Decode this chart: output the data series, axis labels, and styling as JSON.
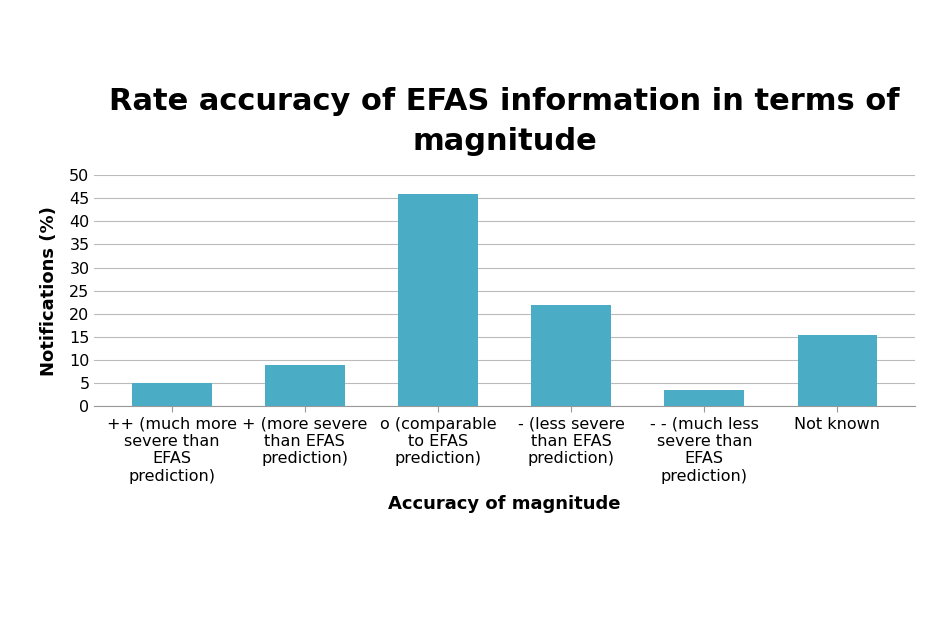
{
  "title": "Rate accuracy of EFAS information in terms of\nmagnitude",
  "xlabel": "Accuracy of magnitude",
  "ylabel": "Notifications (%)",
  "categories": [
    "++ (much more\nsevere than\nEFAS\nprediction)",
    "+ (more severe\nthan EFAS\nprediction)",
    "o (comparable\nto EFAS\nprediction)",
    "- (less severe\nthan EFAS\nprediction)",
    "- - (much less\nsevere than\nEFAS\nprediction)",
    "Not known"
  ],
  "values": [
    5,
    9,
    46,
    22,
    3.5,
    15.5
  ],
  "bar_color": "#4BACC6",
  "ylim": [
    0,
    50
  ],
  "yticks": [
    0,
    5,
    10,
    15,
    20,
    25,
    30,
    35,
    40,
    45,
    50
  ],
  "title_fontsize": 22,
  "axis_label_fontsize": 13,
  "tick_fontsize": 11.5,
  "background_color": "#ffffff",
  "grid_color": "#bbbbbb"
}
